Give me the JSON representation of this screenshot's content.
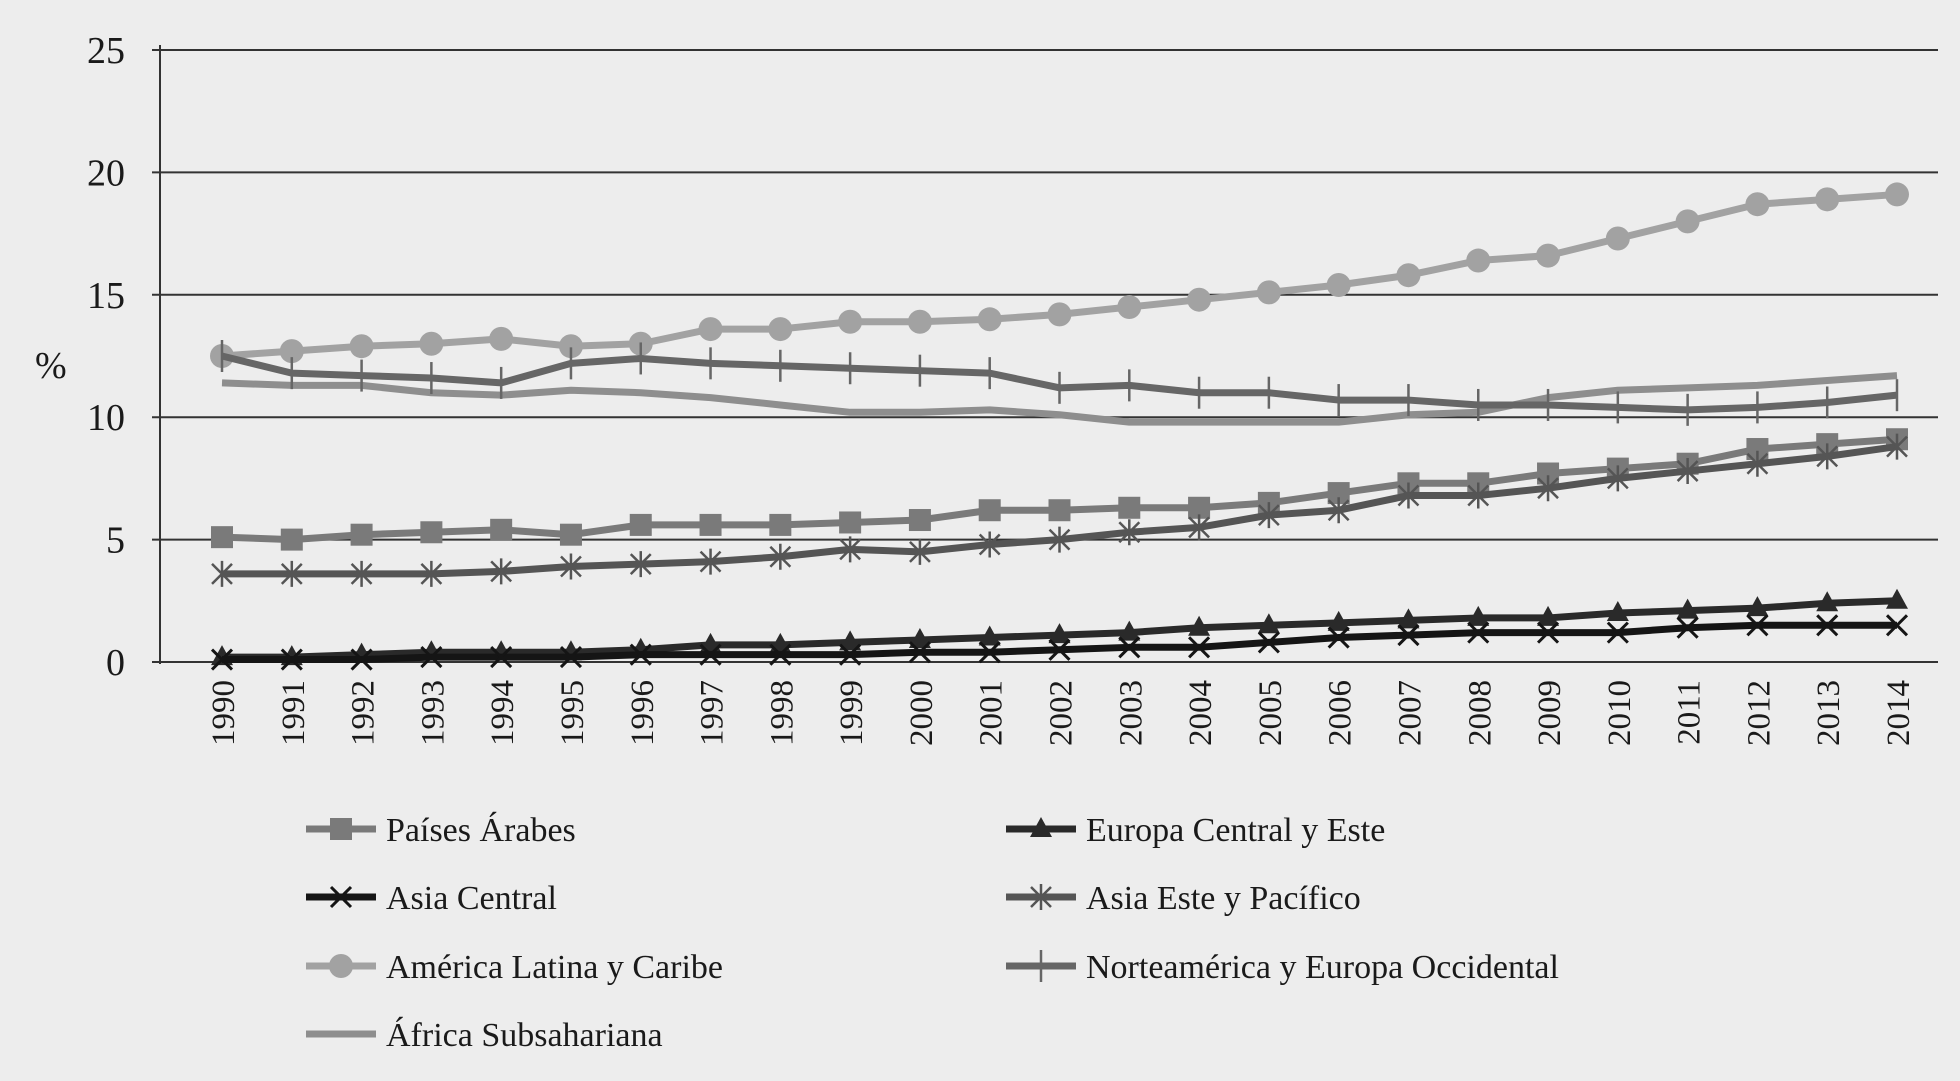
{
  "chart_data": {
    "type": "line",
    "title": "",
    "xlabel": "",
    "ylabel": "%",
    "ylim": [
      0,
      25
    ],
    "yticks": [
      "0",
      "5",
      "10",
      "15",
      "20",
      "25"
    ],
    "grid": true,
    "legend_position": "bottom",
    "x": [
      "1990",
      "1991",
      "1992",
      "1993",
      "1994",
      "1995",
      "1996",
      "1997",
      "1998",
      "1999",
      "2000",
      "2001",
      "2002",
      "2003",
      "2004",
      "2005",
      "2006",
      "2007",
      "2008",
      "2009",
      "2010",
      "2011",
      "2012",
      "2013",
      "2014"
    ],
    "series": [
      {
        "name": "Países Árabes",
        "marker": "square",
        "color": "#7a7a7a",
        "values": [
          5.1,
          5.0,
          5.2,
          5.3,
          5.4,
          5.2,
          5.6,
          5.6,
          5.6,
          5.7,
          5.8,
          6.2,
          6.2,
          6.3,
          6.3,
          6.5,
          6.9,
          7.3,
          7.3,
          7.7,
          7.9,
          8.1,
          8.7,
          8.9,
          9.1
        ]
      },
      {
        "name": "Europa Central y Este",
        "marker": "triangle",
        "color": "#2a2a2a",
        "values": [
          0.2,
          0.2,
          0.3,
          0.4,
          0.4,
          0.4,
          0.5,
          0.7,
          0.7,
          0.8,
          0.9,
          1.0,
          1.1,
          1.2,
          1.4,
          1.5,
          1.6,
          1.7,
          1.8,
          1.8,
          2.0,
          2.1,
          2.2,
          2.4,
          2.5
        ]
      },
      {
        "name": "Asia Central",
        "marker": "x",
        "color": "#151515",
        "values": [
          0.1,
          0.1,
          0.1,
          0.2,
          0.2,
          0.2,
          0.3,
          0.3,
          0.3,
          0.3,
          0.4,
          0.4,
          0.5,
          0.6,
          0.6,
          0.8,
          1.0,
          1.1,
          1.2,
          1.2,
          1.2,
          1.4,
          1.5,
          1.5,
          1.5
        ]
      },
      {
        "name": "Asia Este y Pacífico",
        "marker": "asterisk",
        "color": "#555555",
        "values": [
          3.6,
          3.6,
          3.6,
          3.6,
          3.7,
          3.9,
          4.0,
          4.1,
          4.3,
          4.6,
          4.5,
          4.8,
          5.0,
          5.3,
          5.5,
          6.0,
          6.2,
          6.8,
          6.8,
          7.1,
          7.5,
          7.8,
          8.1,
          8.4,
          8.8
        ]
      },
      {
        "name": "América Latina y Caribe",
        "marker": "circle",
        "color": "#a2a2a2",
        "values": [
          12.5,
          12.7,
          12.9,
          13.0,
          13.2,
          12.9,
          13.0,
          13.6,
          13.6,
          13.9,
          13.9,
          14.0,
          14.2,
          14.5,
          14.8,
          15.1,
          15.4,
          15.8,
          16.4,
          16.6,
          17.3,
          18.0,
          18.7,
          18.9,
          19.1
        ]
      },
      {
        "name": "Norteamérica y Europa Occidental",
        "marker": "plus",
        "color": "#666666",
        "values": [
          12.5,
          11.8,
          11.7,
          11.6,
          11.4,
          12.2,
          12.4,
          12.2,
          12.1,
          12.0,
          11.9,
          11.8,
          11.2,
          11.3,
          11.0,
          11.0,
          10.7,
          10.7,
          10.5,
          10.5,
          10.4,
          10.3,
          10.4,
          10.6,
          10.9
        ]
      },
      {
        "name": "África Subsahariana",
        "marker": "none",
        "color": "#8e8e8e",
        "values": [
          11.4,
          11.3,
          11.3,
          11.0,
          10.9,
          11.1,
          11.0,
          10.8,
          10.5,
          10.2,
          10.2,
          10.3,
          10.1,
          9.8,
          9.8,
          9.8,
          9.8,
          10.1,
          10.2,
          10.8,
          11.1,
          11.2,
          11.3,
          11.5,
          11.7
        ]
      }
    ],
    "legend_order": [
      0,
      1,
      2,
      3,
      4,
      5,
      6
    ]
  }
}
